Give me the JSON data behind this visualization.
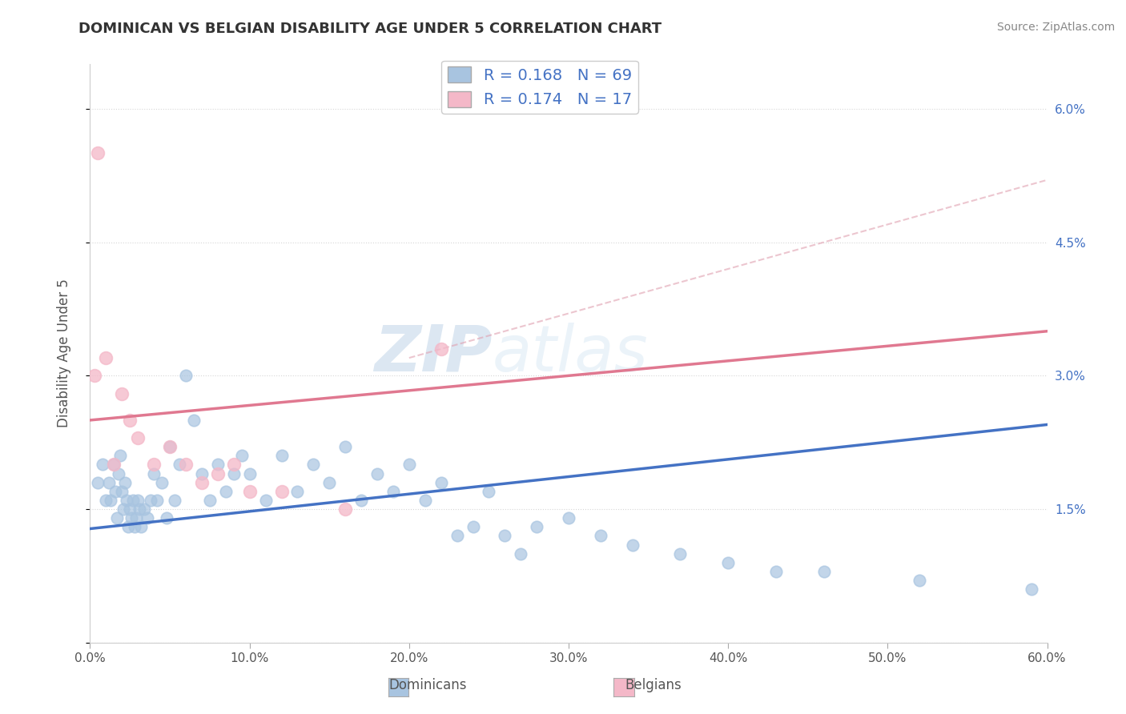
{
  "title": "DOMINICAN VS BELGIAN DISABILITY AGE UNDER 5 CORRELATION CHART",
  "source": "Source: ZipAtlas.com",
  "ylabel": "Disability Age Under 5",
  "xlim": [
    0.0,
    0.6
  ],
  "ylim": [
    0.0,
    0.065
  ],
  "yticks": [
    0.0,
    0.015,
    0.03,
    0.045,
    0.06
  ],
  "ytick_labels_left": [
    "",
    "",
    "",
    "",
    ""
  ],
  "ytick_labels_right": [
    "",
    "1.5%",
    "3.0%",
    "4.5%",
    "6.0%"
  ],
  "xticks": [
    0.0,
    0.1,
    0.2,
    0.3,
    0.4,
    0.5,
    0.6
  ],
  "xtick_labels": [
    "0.0%",
    "10.0%",
    "20.0%",
    "30.0%",
    "40.0%",
    "50.0%",
    "60.0%"
  ],
  "dominican_R": 0.168,
  "dominican_N": 69,
  "belgian_R": 0.174,
  "belgian_N": 17,
  "dominican_color": "#a8c4e0",
  "belgian_color": "#f4b8c8",
  "dominican_line_color": "#4472c4",
  "belgian_line_color": "#e07890",
  "watermark_zip": "ZIP",
  "watermark_atlas": "atlas",
  "dominican_x": [
    0.005,
    0.008,
    0.01,
    0.012,
    0.013,
    0.015,
    0.016,
    0.017,
    0.018,
    0.019,
    0.02,
    0.021,
    0.022,
    0.023,
    0.024,
    0.025,
    0.026,
    0.027,
    0.028,
    0.029,
    0.03,
    0.031,
    0.032,
    0.034,
    0.036,
    0.038,
    0.04,
    0.042,
    0.045,
    0.048,
    0.05,
    0.053,
    0.056,
    0.06,
    0.065,
    0.07,
    0.075,
    0.08,
    0.085,
    0.09,
    0.095,
    0.1,
    0.11,
    0.12,
    0.13,
    0.14,
    0.15,
    0.16,
    0.17,
    0.18,
    0.19,
    0.2,
    0.21,
    0.22,
    0.23,
    0.24,
    0.25,
    0.26,
    0.27,
    0.28,
    0.3,
    0.32,
    0.34,
    0.37,
    0.4,
    0.43,
    0.46,
    0.52,
    0.59
  ],
  "dominican_y": [
    0.018,
    0.02,
    0.016,
    0.018,
    0.016,
    0.02,
    0.017,
    0.014,
    0.019,
    0.021,
    0.017,
    0.015,
    0.018,
    0.016,
    0.013,
    0.015,
    0.014,
    0.016,
    0.013,
    0.014,
    0.016,
    0.015,
    0.013,
    0.015,
    0.014,
    0.016,
    0.019,
    0.016,
    0.018,
    0.014,
    0.022,
    0.016,
    0.02,
    0.03,
    0.025,
    0.019,
    0.016,
    0.02,
    0.017,
    0.019,
    0.021,
    0.019,
    0.016,
    0.021,
    0.017,
    0.02,
    0.018,
    0.022,
    0.016,
    0.019,
    0.017,
    0.02,
    0.016,
    0.018,
    0.012,
    0.013,
    0.017,
    0.012,
    0.01,
    0.013,
    0.014,
    0.012,
    0.011,
    0.01,
    0.009,
    0.008,
    0.008,
    0.007,
    0.006
  ],
  "belgian_x": [
    0.003,
    0.005,
    0.01,
    0.015,
    0.02,
    0.025,
    0.03,
    0.04,
    0.05,
    0.06,
    0.07,
    0.08,
    0.09,
    0.1,
    0.12,
    0.16,
    0.22
  ],
  "belgian_y": [
    0.03,
    0.055,
    0.032,
    0.02,
    0.028,
    0.025,
    0.023,
    0.02,
    0.022,
    0.02,
    0.018,
    0.019,
    0.02,
    0.017,
    0.017,
    0.015,
    0.033
  ],
  "dominican_line_x": [
    0.0,
    0.6
  ],
  "dominican_line_y": [
    0.0128,
    0.0245
  ],
  "belgian_line_x": [
    0.0,
    0.6
  ],
  "belgian_line_y": [
    0.025,
    0.035
  ]
}
